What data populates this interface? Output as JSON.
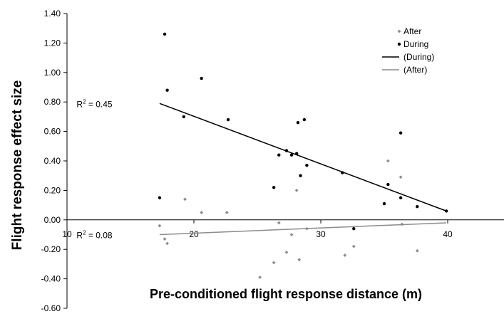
{
  "chart_data": {
    "type": "scatter",
    "title": "",
    "xlabel": "Pre-conditioned flight response distance (m)",
    "ylabel": "Flight response effect size",
    "xlim": [
      10,
      40
    ],
    "ylim": [
      -0.6,
      1.4
    ],
    "x_ticks": [
      "10",
      "20",
      "30",
      "40"
    ],
    "y_ticks": [
      "1.40",
      "1.20",
      "1.00",
      "0.80",
      "0.60",
      "0.40",
      "0.20",
      "0.00",
      "-0.20",
      "-0.40",
      "-0.60"
    ],
    "grid": false,
    "legend_position": "top-right",
    "series": [
      {
        "name": "After",
        "color": "#8c8c8c",
        "marker": "diamond",
        "points": [
          [
            17.3,
            -0.04
          ],
          [
            17.7,
            -0.13
          ],
          [
            17.9,
            -0.16
          ],
          [
            19.3,
            0.14
          ],
          [
            20.6,
            0.05
          ],
          [
            22.6,
            0.05
          ],
          [
            25.2,
            -0.39
          ],
          [
            26.3,
            -0.29
          ],
          [
            26.7,
            -0.02
          ],
          [
            27.3,
            -0.22
          ],
          [
            27.7,
            -0.1
          ],
          [
            28.1,
            0.2
          ],
          [
            28.3,
            -0.27
          ],
          [
            28.9,
            -0.06
          ],
          [
            31.9,
            -0.24
          ],
          [
            32.6,
            -0.18
          ],
          [
            35.3,
            0.4
          ],
          [
            36.3,
            0.29
          ],
          [
            36.4,
            -0.03
          ],
          [
            37.6,
            -0.21
          ]
        ]
      },
      {
        "name": "During",
        "color": "#000000",
        "marker": "circle",
        "points": [
          [
            17.3,
            0.15
          ],
          [
            17.7,
            1.26
          ],
          [
            17.9,
            0.88
          ],
          [
            19.2,
            0.7
          ],
          [
            20.6,
            0.96
          ],
          [
            22.7,
            0.68
          ],
          [
            26.3,
            0.22
          ],
          [
            26.7,
            0.44
          ],
          [
            27.3,
            0.47
          ],
          [
            27.7,
            0.44
          ],
          [
            28.1,
            0.45
          ],
          [
            28.2,
            0.66
          ],
          [
            28.4,
            0.3
          ],
          [
            28.7,
            0.68
          ],
          [
            28.9,
            0.37
          ],
          [
            31.7,
            0.32
          ],
          [
            32.6,
            -0.06
          ],
          [
            35.0,
            0.11
          ],
          [
            35.3,
            0.24
          ],
          [
            36.3,
            0.59
          ],
          [
            36.3,
            0.15
          ],
          [
            37.6,
            0.09
          ],
          [
            39.9,
            0.06
          ]
        ]
      }
    ],
    "trendlines": [
      {
        "name": "(During)",
        "color": "#000000",
        "from": [
          17.3,
          0.79
        ],
        "to": [
          39.9,
          0.06
        ],
        "r2_label": "R",
        "r2_sup": "2",
        "r2_value": " = 0.45",
        "label_at": [
          13.0,
          0.79
        ]
      },
      {
        "name": "(After)",
        "color": "#8c8c8c",
        "from": [
          17.3,
          -0.1
        ],
        "to": [
          39.9,
          -0.02
        ],
        "r2_label": "R",
        "r2_sup": "2",
        "r2_value": " = 0.08",
        "label_at": [
          13.0,
          -0.1
        ]
      }
    ]
  }
}
